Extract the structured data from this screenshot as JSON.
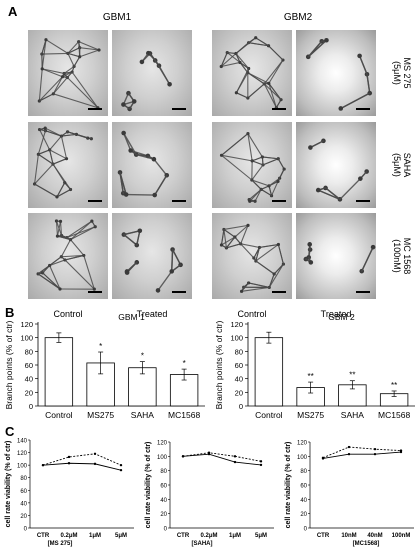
{
  "panel_a": {
    "letter": "A",
    "groups": [
      "GBM1",
      "GBM2"
    ],
    "row_labels": [
      "MS 275\n(5μM)",
      "SAHA\n(5μM)",
      "MC 1568\n(100nM)"
    ],
    "col_labels": [
      "Control",
      "Treated",
      "Control",
      "Treated"
    ],
    "images": [
      [
        "network",
        "sparse",
        "network",
        "bright"
      ],
      [
        "network",
        "sparse",
        "network",
        "bright"
      ],
      [
        "network",
        "sparse",
        "network",
        "bright"
      ]
    ]
  },
  "panel_b": {
    "letter": "B"
  },
  "panel_c": {
    "letter": "C"
  },
  "chart_data": [
    {
      "type": "bar",
      "title": "GBM 1",
      "ylabel": "Branch points (% of ctr)",
      "categories": [
        "Control",
        "MS275",
        "SAHA",
        "MC1568"
      ],
      "values": [
        100,
        63,
        56,
        46
      ],
      "errors": [
        7,
        16,
        9,
        8
      ],
      "annotations": [
        "",
        "*",
        "*",
        "*"
      ],
      "ylim": [
        0,
        120
      ],
      "yticks": [
        0,
        20,
        40,
        60,
        80,
        100,
        120
      ]
    },
    {
      "type": "bar",
      "title": "GBM 2",
      "ylabel": "Branch points (% of ctr)",
      "categories": [
        "Control",
        "MS275",
        "SAHA",
        "MC1568"
      ],
      "values": [
        100,
        27,
        31,
        18
      ],
      "errors": [
        8,
        8,
        6,
        4
      ],
      "annotations": [
        "",
        "**",
        "**",
        "**"
      ],
      "ylim": [
        0,
        120
      ],
      "yticks": [
        0,
        20,
        40,
        60,
        80,
        100,
        120
      ]
    },
    {
      "type": "line",
      "ylabel": "cell rate viability (% of ctr)",
      "categories": [
        "CTR",
        "0.2μM",
        "1μM",
        "5μM"
      ],
      "xlabel": "[MS 275]",
      "ylim": [
        0,
        140
      ],
      "yticks": [
        0,
        20,
        40,
        60,
        80,
        100,
        120,
        140
      ],
      "series": [
        {
          "style": "solid",
          "values": [
            100,
            103,
            102,
            92
          ]
        },
        {
          "style": "dashed",
          "values": [
            100,
            113,
            118,
            100
          ]
        }
      ]
    },
    {
      "type": "line",
      "ylabel": "cell rate viability (% of ctr)",
      "categories": [
        "CTR",
        "0.2μM",
        "1μM",
        "5μM"
      ],
      "xlabel": "[SAHA]",
      "ylim": [
        0,
        120
      ],
      "yticks": [
        0,
        20,
        40,
        60,
        80,
        100,
        120
      ],
      "series": [
        {
          "style": "solid",
          "values": [
            100,
            103,
            92,
            88
          ]
        },
        {
          "style": "dashed",
          "values": [
            100,
            105,
            100,
            93
          ]
        }
      ]
    },
    {
      "type": "line",
      "ylabel": "cell rate viability (% of ctr)",
      "categories": [
        "CTR",
        "10nM",
        "40nM",
        "100nM"
      ],
      "xlabel": "[MC1568]",
      "ylim": [
        0,
        120
      ],
      "yticks": [
        0,
        20,
        40,
        60,
        80,
        100,
        120
      ],
      "series": [
        {
          "style": "solid",
          "values": [
            97,
            103,
            103,
            106
          ]
        },
        {
          "style": "dashed",
          "values": [
            98,
            113,
            110,
            108
          ]
        }
      ]
    }
  ]
}
